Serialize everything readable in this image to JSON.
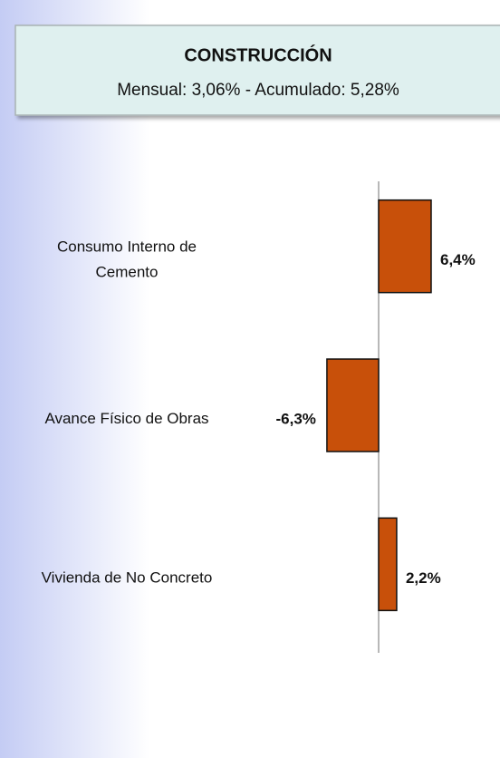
{
  "chart_data": {
    "type": "bar",
    "orientation": "horizontal",
    "title": "CONSTRUCCIÓN",
    "subtitle": "Mensual: 3,06% - Acumulado: 5,28%",
    "categories": [
      "Consumo Interno de Cemento",
      "Avance Físico de Obras",
      "Vivienda de No Concreto"
    ],
    "values": [
      6.4,
      -6.3,
      2.2
    ],
    "value_labels": [
      "6,4%",
      "-6,3%",
      "2,2%"
    ],
    "color": "#c8500a"
  }
}
